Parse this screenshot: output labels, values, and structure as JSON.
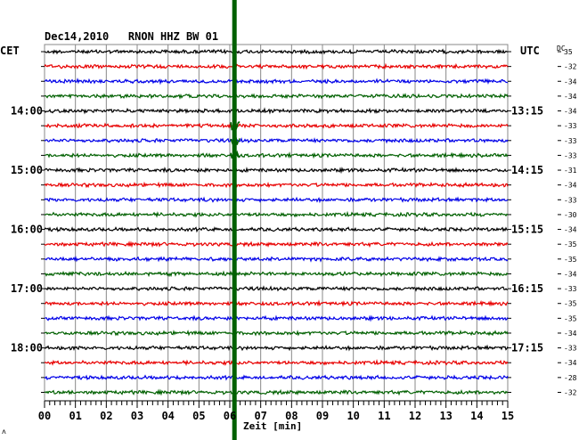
{
  "chart_data": {
    "type": "line",
    "title": "Dec14,2010   RNON HHZ BW 01",
    "left_axis_label": "CET",
    "right_axis_label": "UTC",
    "dc_label": "DC",
    "xlabel": "Zeit [min]",
    "x_ticks": [
      "00",
      "01",
      "02",
      "03",
      "04",
      "05",
      "06",
      "07",
      "08",
      "09",
      "10",
      "11",
      "12",
      "13",
      "14",
      "15"
    ],
    "xlim": [
      0,
      15
    ],
    "trace_count": 24,
    "trace_colors": [
      "#000000",
      "#e80000",
      "#0000e8",
      "#006000"
    ],
    "cet_labels": [
      {
        "trace": 4,
        "text": "14:00"
      },
      {
        "trace": 8,
        "text": "15:00"
      },
      {
        "trace": 12,
        "text": "16:00"
      },
      {
        "trace": 16,
        "text": "17:00"
      },
      {
        "trace": 20,
        "text": "18:00"
      }
    ],
    "utc_labels": [
      {
        "trace": 4,
        "text": "13:15"
      },
      {
        "trace": 8,
        "text": "14:15"
      },
      {
        "trace": 12,
        "text": "15:15"
      },
      {
        "trace": 16,
        "text": "16:15"
      },
      {
        "trace": 20,
        "text": "17:15"
      }
    ],
    "dc_offsets": [
      "35",
      "-32",
      "-34",
      "-34",
      "-34",
      "-33",
      "-33",
      "-33",
      "-31",
      "-34",
      "-33",
      "-30",
      "-34",
      "-35",
      "-35",
      "-34",
      "-33",
      "-35",
      "-35",
      "-34",
      "-33",
      "-34",
      "-28",
      "-32"
    ],
    "event": {
      "minute": 6.15,
      "color": "#006000"
    },
    "footer_mark": "ʌ"
  }
}
